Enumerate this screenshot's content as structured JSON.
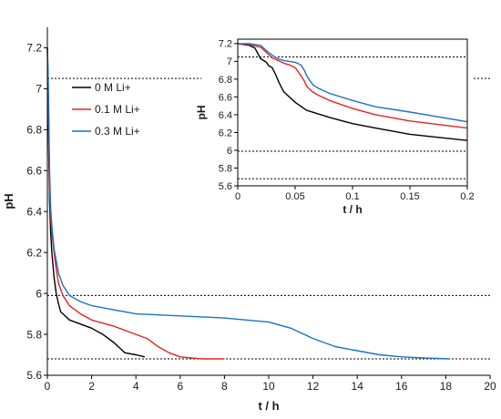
{
  "chart_data": [
    {
      "type": "line",
      "title": "",
      "xlabel": "t / h",
      "ylabel": "pH",
      "xlim": [
        0,
        20
      ],
      "ylim": [
        5.6,
        7.3
      ],
      "xticks": [
        "0",
        "2",
        "4",
        "6",
        "8",
        "10",
        "12",
        "14",
        "16",
        "18",
        "20"
      ],
      "yticks": [
        "5.6",
        "5.8",
        "6",
        "6.2",
        "6.4",
        "6.6",
        "6.8",
        "7",
        "7.2"
      ],
      "reference_lines": [
        7.05,
        5.99,
        5.68
      ],
      "grid": false,
      "legend_position": "upper-left",
      "series": [
        {
          "name": "0 M Li+",
          "color": "#000000",
          "x": [
            0,
            0.03,
            0.06,
            0.1,
            0.15,
            0.2,
            0.3,
            0.4,
            0.5,
            0.6,
            0.8,
            1.0,
            1.5,
            2.0,
            2.5,
            3.0,
            3.3,
            3.5,
            4.0,
            4.4
          ],
          "y": [
            7.2,
            7.0,
            6.7,
            6.45,
            6.3,
            6.2,
            6.08,
            6.0,
            5.95,
            5.91,
            5.89,
            5.87,
            5.85,
            5.83,
            5.8,
            5.76,
            5.73,
            5.71,
            5.7,
            5.69
          ]
        },
        {
          "name": "0.1 M Li+",
          "color": "#e8231f",
          "x": [
            0,
            0.03,
            0.06,
            0.1,
            0.15,
            0.2,
            0.3,
            0.4,
            0.5,
            0.7,
            1.0,
            1.5,
            2.0,
            3.0,
            4.0,
            4.5,
            5.0,
            5.5,
            6.0,
            6.5,
            7.0,
            8.0
          ],
          "y": [
            7.2,
            7.05,
            6.8,
            6.5,
            6.38,
            6.3,
            6.2,
            6.12,
            6.05,
            5.99,
            5.94,
            5.9,
            5.87,
            5.84,
            5.8,
            5.78,
            5.74,
            5.71,
            5.69,
            5.685,
            5.68,
            5.68
          ]
        },
        {
          "name": "0.3 M Li+",
          "color": "#1a73c6",
          "x": [
            0,
            0.03,
            0.06,
            0.1,
            0.15,
            0.2,
            0.3,
            0.5,
            0.7,
            1.0,
            1.5,
            2.0,
            3.0,
            4.0,
            6.0,
            8.0,
            10.0,
            11.0,
            12.0,
            13.0,
            14.0,
            15.0,
            16.0,
            17.0,
            18.2
          ],
          "y": [
            7.2,
            7.1,
            6.9,
            6.6,
            6.42,
            6.33,
            6.22,
            6.1,
            6.04,
            5.99,
            5.96,
            5.94,
            5.92,
            5.9,
            5.89,
            5.88,
            5.86,
            5.83,
            5.78,
            5.74,
            5.72,
            5.7,
            5.69,
            5.685,
            5.68
          ]
        }
      ]
    },
    {
      "type": "line",
      "title": "",
      "xlabel": "t / h",
      "ylabel": "pH",
      "xlim": [
        0,
        0.2
      ],
      "ylim": [
        5.6,
        7.25
      ],
      "xticks": [
        "0",
        "0.05",
        "0.1",
        "0.15",
        "0.2"
      ],
      "yticks": [
        "5.6",
        "5.8",
        "6",
        "6.2",
        "6.4",
        "6.6",
        "6.8",
        "7",
        "7.2"
      ],
      "reference_lines": [
        7.05,
        5.99,
        5.68
      ],
      "grid": false,
      "series": [
        {
          "name": "0 M Li+",
          "color": "#000000",
          "x": [
            0,
            0.01,
            0.015,
            0.02,
            0.025,
            0.027,
            0.03,
            0.033,
            0.036,
            0.04,
            0.05,
            0.06,
            0.08,
            0.1,
            0.12,
            0.15,
            0.2
          ],
          "y": [
            7.2,
            7.18,
            7.15,
            7.03,
            6.99,
            6.95,
            6.93,
            6.85,
            6.76,
            6.66,
            6.54,
            6.45,
            6.37,
            6.3,
            6.25,
            6.18,
            6.11
          ]
        },
        {
          "name": "0.1 M Li+",
          "color": "#e8231f",
          "x": [
            0,
            0.01,
            0.02,
            0.025,
            0.03,
            0.035,
            0.04,
            0.045,
            0.05,
            0.054,
            0.058,
            0.06,
            0.065,
            0.07,
            0.08,
            0.1,
            0.12,
            0.15,
            0.2
          ],
          "y": [
            7.2,
            7.19,
            7.16,
            7.1,
            7.04,
            7.01,
            6.98,
            6.96,
            6.93,
            6.86,
            6.78,
            6.72,
            6.66,
            6.62,
            6.56,
            6.47,
            6.4,
            6.33,
            6.25
          ]
        },
        {
          "name": "0.3 M Li+",
          "color": "#1a73c6",
          "x": [
            0,
            0.01,
            0.02,
            0.025,
            0.03,
            0.035,
            0.04,
            0.045,
            0.05,
            0.055,
            0.058,
            0.06,
            0.063,
            0.066,
            0.07,
            0.08,
            0.1,
            0.12,
            0.15,
            0.2
          ],
          "y": [
            7.2,
            7.2,
            7.18,
            7.12,
            7.07,
            7.03,
            7.01,
            7.0,
            6.99,
            6.96,
            6.9,
            6.84,
            6.78,
            6.73,
            6.7,
            6.64,
            6.56,
            6.49,
            6.43,
            6.32
          ]
        }
      ]
    }
  ]
}
